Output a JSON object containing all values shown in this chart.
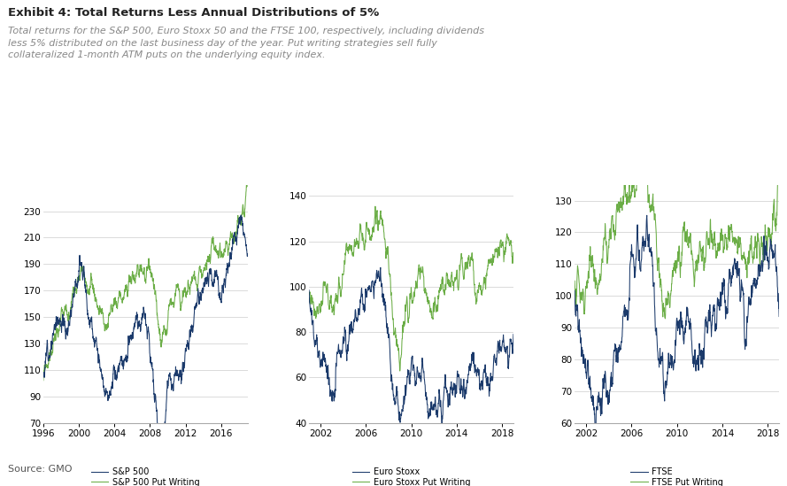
{
  "title": "Exhibit 4: Total Returns Less Annual Distributions of 5%",
  "subtitle": "Total returns for the S&P 500, Euro Stoxx 50 and the FTSE 100, respectively, including dividends\nless 5% distributed on the last business day of the year. Put writing strategies sell fully\ncollateralized 1-month ATM puts on the underlying equity index.",
  "source": "Source: GMO",
  "navy": "#1B3A6B",
  "green": "#6AAD45",
  "bg_color": "#FFFFFF",
  "panel1": {
    "xlabel_ticks": [
      1996,
      2000,
      2004,
      2008,
      2012,
      2016
    ],
    "ylim": [
      70,
      250
    ],
    "yticks": [
      70,
      90,
      110,
      130,
      150,
      170,
      190,
      210,
      230
    ],
    "legend": [
      "S&P 500",
      "S&P 500 Put Writing"
    ]
  },
  "panel2": {
    "xlabel_ticks": [
      2002,
      2006,
      2010,
      2014,
      2018
    ],
    "ylim": [
      40,
      145
    ],
    "yticks": [
      40,
      60,
      80,
      100,
      120,
      140
    ],
    "legend": [
      "Euro Stoxx",
      "Euro Stoxx Put Writing"
    ]
  },
  "panel3": {
    "xlabel_ticks": [
      2002,
      2006,
      2010,
      2014,
      2018
    ],
    "ylim": [
      60,
      135
    ],
    "yticks": [
      60,
      70,
      80,
      90,
      100,
      110,
      120,
      130
    ],
    "legend": [
      "FTSE",
      "FTSE Put Writing"
    ]
  }
}
